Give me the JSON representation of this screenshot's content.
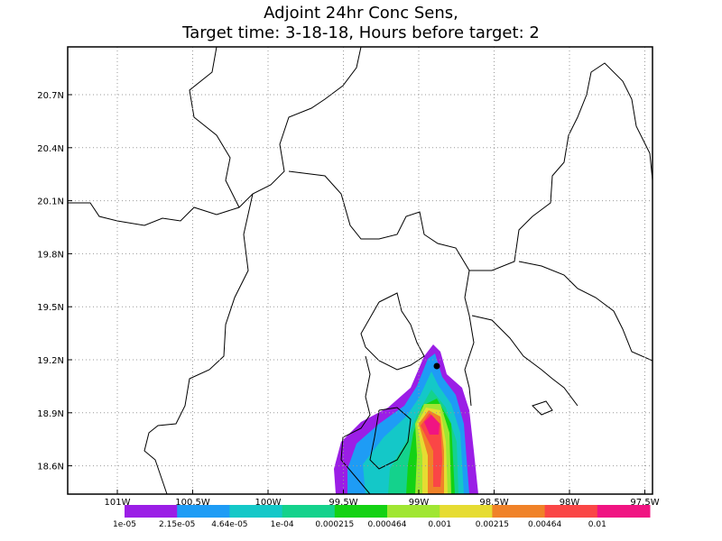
{
  "title": [
    "Adjoint 24hr Conc Sens,",
    "Target time: 3-18-18, Hours before target: 2"
  ],
  "map": {
    "lat_ticks": [
      {
        "value": 20.7,
        "label": "20.7N"
      },
      {
        "value": 20.4,
        "label": "20.4N"
      },
      {
        "value": 20.1,
        "label": "20.1N"
      },
      {
        "value": 19.8,
        "label": "19.8N"
      },
      {
        "value": 19.5,
        "label": "19.5N"
      },
      {
        "value": 19.2,
        "label": "19.2N"
      },
      {
        "value": 18.9,
        "label": "18.9N"
      },
      {
        "value": 18.6,
        "label": "18.6N"
      }
    ],
    "lon_ticks": [
      {
        "value": -101,
        "label": "101W"
      },
      {
        "value": -100.5,
        "label": "100.5W"
      },
      {
        "value": -100,
        "label": "100W"
      },
      {
        "value": -99.5,
        "label": "99.5W"
      },
      {
        "value": -99,
        "label": "99W"
      },
      {
        "value": -98.5,
        "label": "98.5W"
      },
      {
        "value": -98,
        "label": "98W"
      },
      {
        "value": -97.5,
        "label": "97.5W"
      }
    ]
  },
  "colorbar": {
    "colors": [
      "#9b1ee6",
      "#1e9cf5",
      "#14c8c8",
      "#14d28c",
      "#14d214",
      "#a0e632",
      "#e6dc32",
      "#f08228",
      "#fa4646",
      "#f01482"
    ],
    "labels": [
      "1e-05",
      "2.15e-05",
      "4.64e-05",
      "1e-04",
      "0.000215",
      "0.000464",
      "0.001",
      "0.00215",
      "0.00464",
      "0.01"
    ]
  }
}
